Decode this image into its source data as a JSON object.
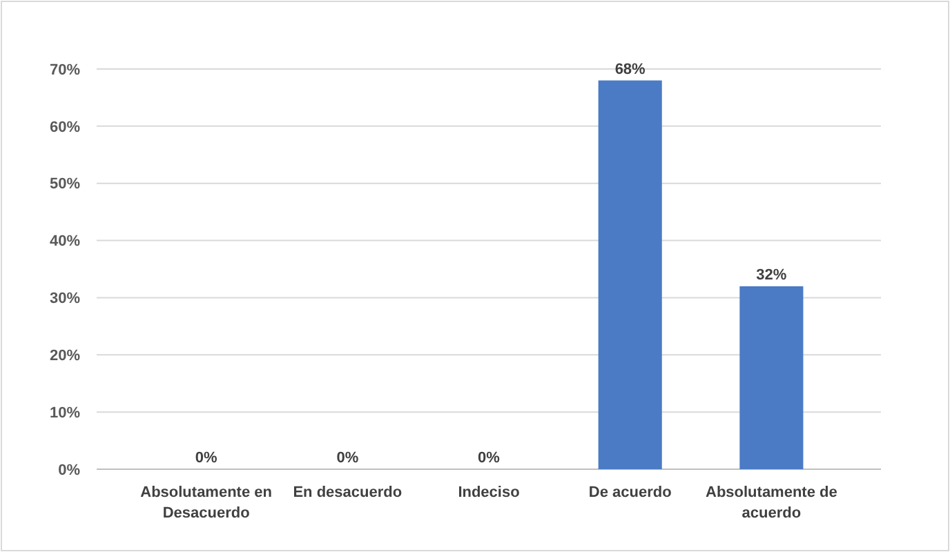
{
  "chart_data": {
    "type": "bar",
    "categories": [
      "Absolutamente en Desacuerdo",
      "En desacuerdo",
      "Indeciso",
      "De acuerdo",
      "Absolutamente de acuerdo"
    ],
    "values": [
      0,
      0,
      0,
      68,
      32
    ],
    "value_labels": [
      "0%",
      "0%",
      "0%",
      "68%",
      "32%"
    ],
    "color": "#4a7bc4",
    "ylim": [
      0,
      70
    ],
    "yticks": [
      {
        "value": 0,
        "label": "0%"
      },
      {
        "value": 10,
        "label": "10%"
      },
      {
        "value": 20,
        "label": "20%"
      },
      {
        "value": 30,
        "label": "30%"
      },
      {
        "value": 40,
        "label": "40%"
      },
      {
        "value": 50,
        "label": "50%"
      },
      {
        "value": 60,
        "label": "60%"
      },
      {
        "value": 70,
        "label": "70%"
      }
    ],
    "grid": "y"
  }
}
